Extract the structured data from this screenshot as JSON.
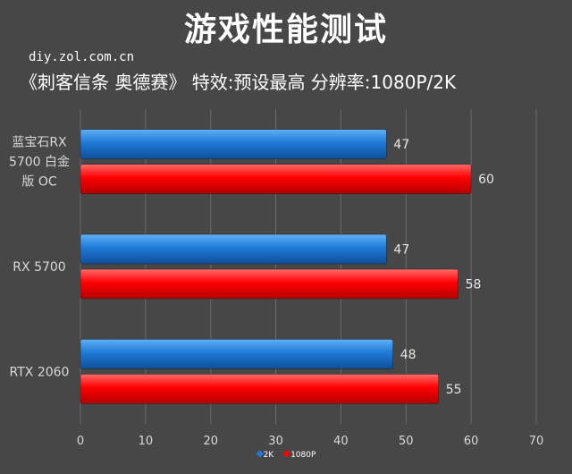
{
  "header": {
    "title": "游戏性能测试",
    "watermark": "diy.zol.com.cn",
    "subtitle": "《刺客信条 奥德赛》  特效:预设最高  分辨率:1080P/2K"
  },
  "chart_data": {
    "type": "bar",
    "orientation": "horizontal",
    "categories": [
      "蓝宝石RX 5700 白金版 OC",
      "RX 5700",
      "RTX 2060"
    ],
    "category_lines": [
      [
        "蓝宝石RX",
        "5700 白金",
        "版 OC"
      ],
      [
        "RX 5700"
      ],
      [
        "RTX 2060"
      ]
    ],
    "series": [
      {
        "name": "2K",
        "values": [
          47,
          47,
          48
        ],
        "color": "#1f7ad6"
      },
      {
        "name": "1080P",
        "values": [
          60,
          58,
          55
        ],
        "color": "#ff0000"
      }
    ],
    "xlim": [
      0,
      70
    ],
    "xticks": [
      "0",
      "10",
      "20",
      "30",
      "40",
      "50",
      "60",
      "70"
    ],
    "grid": true,
    "legend_position": "bottom"
  },
  "colors": {
    "background": "#474747",
    "grid": "#6a6a6a",
    "axis_text": "#d9d9d9"
  }
}
